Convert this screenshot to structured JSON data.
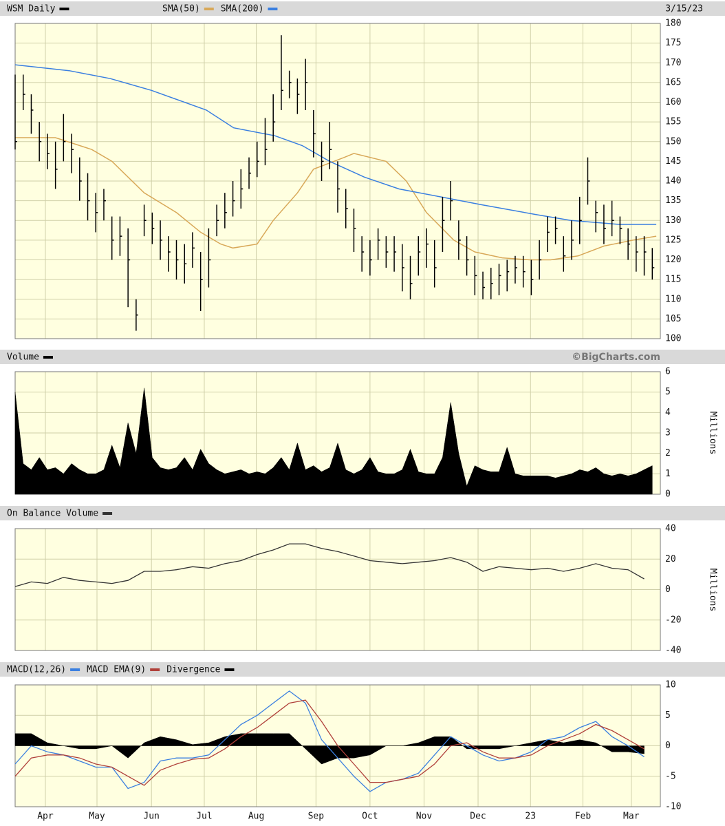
{
  "chart_data": [
    {
      "type": "hlc",
      "title": "WSM Daily",
      "color": "#000000",
      "date": "3/15/23",
      "x": [
        0,
        1,
        2,
        3,
        4,
        5,
        6,
        7,
        8,
        9,
        10,
        11,
        12,
        13,
        14,
        15,
        16,
        17,
        18,
        19,
        20,
        21,
        22,
        23,
        24,
        25,
        26,
        27,
        28,
        29,
        30,
        31,
        32,
        33,
        34,
        35,
        36,
        37,
        38,
        39,
        40,
        41,
        42,
        43,
        44,
        45,
        46,
        47,
        48,
        49,
        50,
        51,
        52,
        53,
        54,
        55,
        56,
        57,
        58,
        59,
        60,
        61,
        62,
        63,
        64,
        65,
        66,
        67,
        68,
        69,
        70,
        71,
        72,
        73,
        74,
        75,
        76,
        77,
        78,
        79
      ],
      "high": [
        167,
        167,
        162,
        155,
        152,
        150,
        157,
        152,
        146,
        142,
        137,
        138,
        131,
        131,
        128,
        110,
        134,
        132,
        130,
        126,
        125,
        124,
        127,
        122,
        128,
        134,
        137,
        140,
        143,
        146,
        150,
        156,
        162,
        177,
        168,
        166,
        171,
        158,
        150,
        155,
        145,
        138,
        133,
        126,
        125,
        128,
        126,
        126,
        124,
        121,
        126,
        128,
        125,
        136,
        140,
        130,
        126,
        121,
        117,
        118,
        119,
        120,
        121,
        121,
        120,
        125,
        131,
        131,
        126,
        130,
        136,
        146,
        135,
        134,
        135,
        131,
        128,
        126,
        126,
        123
      ],
      "low": [
        148,
        158,
        152,
        145,
        143,
        138,
        145,
        142,
        135,
        130,
        127,
        130,
        120,
        121,
        108,
        102,
        126,
        124,
        120,
        117,
        115,
        114,
        118,
        107,
        113,
        126,
        128,
        131,
        133,
        138,
        141,
        144,
        150,
        158,
        161,
        157,
        158,
        146,
        140,
        143,
        132,
        128,
        122,
        117,
        116,
        120,
        118,
        117,
        112,
        110,
        116,
        118,
        113,
        122,
        130,
        120,
        116,
        111,
        110,
        110,
        111,
        112,
        114,
        113,
        111,
        115,
        122,
        124,
        117,
        120,
        124,
        134,
        127,
        124,
        126,
        124,
        120,
        117,
        116,
        115
      ],
      "close": [
        150,
        162,
        158,
        150,
        147,
        143,
        150,
        148,
        140,
        135,
        132,
        135,
        125,
        126,
        120,
        106,
        130,
        128,
        125,
        122,
        120,
        119,
        123,
        115,
        120,
        130,
        132,
        135,
        138,
        142,
        145,
        148,
        155,
        163,
        165,
        162,
        165,
        152,
        145,
        148,
        138,
        133,
        128,
        122,
        120,
        125,
        122,
        122,
        118,
        114,
        122,
        124,
        118,
        130,
        135,
        125,
        120,
        116,
        113,
        114,
        116,
        117,
        118,
        117,
        115,
        120,
        127,
        128,
        121,
        125,
        130,
        140,
        132,
        128,
        130,
        128,
        124,
        122,
        122,
        118
      ],
      "overlays": [
        {
          "name": "SMA(50)",
          "color": "#d8a858",
          "x": [
            0,
            5,
            9.5,
            12,
            16,
            20,
            23,
            25.5,
            27,
            30,
            32,
            35,
            37,
            40.8,
            42,
            46,
            48.5,
            51,
            54.4,
            57,
            60.4,
            63.8,
            66.4,
            69.8,
            73,
            76.6,
            79.5
          ],
          "values": [
            151,
            151,
            148,
            145,
            137,
            132,
            127,
            124,
            123,
            124,
            130,
            137,
            143,
            146,
            147,
            145,
            140,
            132,
            125,
            122,
            120.5,
            120,
            120,
            121,
            123.5,
            125,
            126
          ]
        },
        {
          "name": "SMA(200)",
          "color": "#3a7fe0",
          "x": [
            0,
            6.7,
            11.8,
            16.9,
            23.7,
            27.1,
            32.2,
            35.6,
            39,
            43.3,
            47.6,
            52.7,
            57.8,
            64.6,
            68.9,
            74.9,
            79.5
          ],
          "values": [
            169.5,
            168,
            166,
            163,
            158,
            153.5,
            151.5,
            149,
            145,
            141,
            138,
            136,
            134,
            131.5,
            130,
            129,
            129
          ]
        }
      ],
      "xlim": [
        0,
        80
      ],
      "ylim": [
        100,
        180
      ],
      "yticks": [
        100,
        105,
        110,
        115,
        120,
        125,
        130,
        135,
        140,
        145,
        150,
        155,
        160,
        165,
        170,
        175,
        180
      ],
      "grid": true
    },
    {
      "type": "area",
      "title": "Volume",
      "source": "©BigCharts.com",
      "color": "#000000",
      "y_label": "Millions",
      "values": [
        5.0,
        1.5,
        1.2,
        1.8,
        1.2,
        1.3,
        1.0,
        1.5,
        1.2,
        1.0,
        1.0,
        1.2,
        2.4,
        1.3,
        3.5,
        2.0,
        5.2,
        1.8,
        1.3,
        1.2,
        1.3,
        1.8,
        1.2,
        2.2,
        1.5,
        1.2,
        1.0,
        1.1,
        1.2,
        1.0,
        1.1,
        1.0,
        1.3,
        1.8,
        1.2,
        2.5,
        1.2,
        1.4,
        1.1,
        1.3,
        2.5,
        1.2,
        1.0,
        1.2,
        1.8,
        1.1,
        1.0,
        1.0,
        1.2,
        2.2,
        1.1,
        1.0,
        1.0,
        1.8,
        4.5,
        2.0,
        0.4,
        1.4,
        1.2,
        1.1,
        1.1,
        2.3,
        1.0,
        0.9,
        0.9,
        0.9,
        0.9,
        0.8,
        0.9,
        1.0,
        1.2,
        1.1,
        1.3,
        1.0,
        0.9,
        1.0,
        0.9,
        1.0,
        1.2,
        1.4
      ],
      "ylim": [
        0,
        6
      ],
      "yticks": [
        0,
        1,
        2,
        3,
        4,
        5,
        6
      ],
      "grid": true
    },
    {
      "type": "line",
      "title": "On Balance Volume",
      "color": "#333333",
      "y_label": "Millions",
      "x": [
        0,
        2,
        4,
        6,
        8,
        10,
        12,
        14,
        16,
        18,
        20,
        22,
        24,
        26,
        28,
        30,
        32,
        34,
        36,
        38,
        40,
        42,
        44,
        46,
        48,
        50,
        52,
        54,
        56,
        58,
        60,
        62,
        64,
        66,
        68,
        70,
        72,
        74,
        76,
        78
      ],
      "values": [
        2,
        5,
        4,
        8,
        6,
        5,
        4,
        6,
        12,
        12,
        13,
        15,
        14,
        17,
        19,
        23,
        26,
        30,
        30,
        27,
        25,
        22,
        19,
        18,
        17,
        18,
        19,
        21,
        18,
        12,
        15,
        14,
        13,
        14,
        12,
        14,
        17,
        14,
        13,
        7
      ],
      "ylim": [
        -40,
        40
      ],
      "yticks": [
        -40,
        -20,
        0,
        20,
        40
      ],
      "grid": true
    },
    {
      "type": "macd",
      "x": [
        0,
        2,
        4,
        6,
        8,
        10,
        12,
        14,
        16,
        18,
        20,
        22,
        24,
        26,
        28,
        30,
        32,
        34,
        36,
        38,
        40,
        42,
        44,
        46,
        48,
        50,
        52,
        54,
        56,
        58,
        60,
        62,
        64,
        66,
        68,
        70,
        72,
        74,
        76,
        78
      ],
      "series": [
        {
          "name": "MACD(12,26)",
          "color": "#3a7fe0",
          "values": [
            -3,
            0,
            -1,
            -1.5,
            -2.5,
            -3.5,
            -3.5,
            -7,
            -6,
            -2.5,
            -2,
            -2,
            -1.5,
            1,
            3.5,
            5,
            7,
            9,
            7,
            1,
            -2,
            -5,
            -7.5,
            -6,
            -5.5,
            -4.5,
            -1.5,
            1.5,
            0,
            -1.5,
            -2.5,
            -2,
            -1,
            1,
            1.5,
            3,
            4,
            1.5,
            0,
            -1.8
          ]
        },
        {
          "name": "MACD EMA(9)",
          "color": "#b0403a",
          "values": [
            -5,
            -2,
            -1.5,
            -1.5,
            -2,
            -3,
            -3.5,
            -5,
            -6.5,
            -4,
            -3,
            -2.2,
            -2,
            -0.5,
            1.5,
            3,
            5,
            7,
            7.5,
            4,
            0,
            -3,
            -6,
            -6,
            -5.5,
            -5,
            -3,
            0,
            0.5,
            -1,
            -2,
            -2,
            -1.5,
            0,
            1,
            2,
            3.5,
            2.5,
            1,
            -0.5
          ]
        },
        {
          "name": "Divergence",
          "color": "#000000",
          "kind": "area",
          "values": [
            2,
            2,
            0.5,
            0,
            -0.5,
            -0.5,
            0,
            -2,
            0.5,
            1.5,
            1,
            0.2,
            0.5,
            1.5,
            2,
            2,
            2,
            2,
            -0.5,
            -3,
            -2,
            -2,
            -1.5,
            0,
            0,
            0.5,
            1.5,
            1.5,
            -0.5,
            -0.5,
            -0.5,
            0,
            0.5,
            1,
            0.5,
            1,
            0.5,
            -1,
            -1,
            -1.3
          ]
        }
      ],
      "xticks": [
        {
          "value": 3.75,
          "label": "Apr"
        },
        {
          "value": 10.15,
          "label": "May"
        },
        {
          "value": 16.9,
          "label": "Jun"
        },
        {
          "value": 23.45,
          "label": "Jul"
        },
        {
          "value": 29.9,
          "label": "Aug"
        },
        {
          "value": 37.3,
          "label": "Sep"
        },
        {
          "value": 44.0,
          "label": "Oct"
        },
        {
          "value": 50.7,
          "label": "Nov"
        },
        {
          "value": 57.4,
          "label": "Dec"
        },
        {
          "value": 63.9,
          "label": "23"
        },
        {
          "value": 70.4,
          "label": "Feb"
        },
        {
          "value": 76.4,
          "label": "Mar"
        }
      ],
      "ylim": [
        -10,
        10
      ],
      "yticks": [
        -10,
        -5,
        0,
        5,
        10
      ],
      "grid": true
    }
  ]
}
